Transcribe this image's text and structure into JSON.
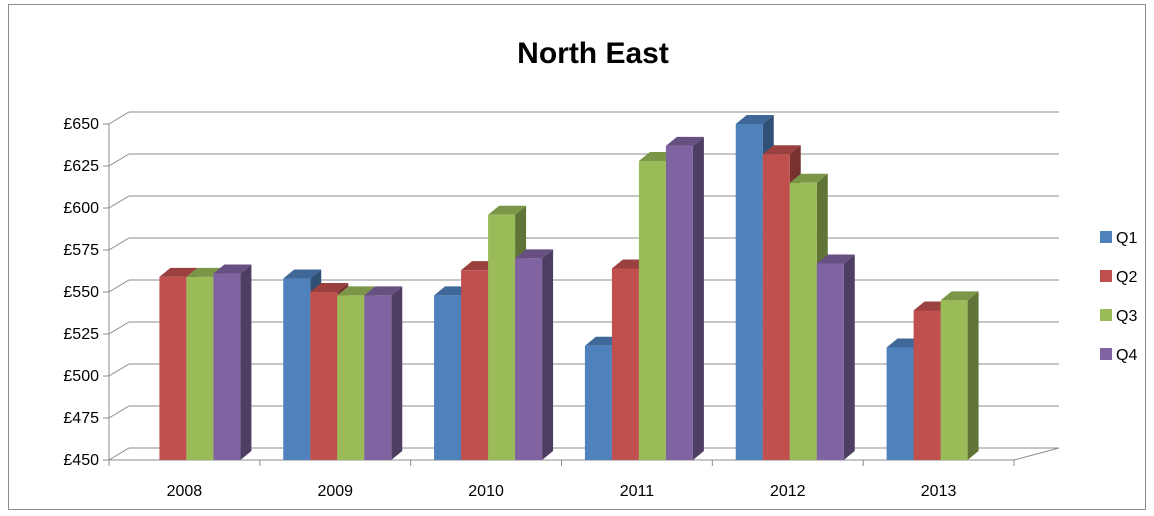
{
  "chart_data": {
    "type": "bar",
    "title": "North East",
    "xlabel": "",
    "ylabel": "",
    "categories": [
      "2008",
      "2009",
      "2010",
      "2011",
      "2012",
      "2013"
    ],
    "y_ticks": [
      "£450",
      "£475",
      "£500",
      "£525",
      "£550",
      "£575",
      "£600",
      "£625",
      "£650"
    ],
    "ylim": [
      450,
      650
    ],
    "grid": true,
    "legend_position": "right",
    "series": [
      {
        "name": "Q1",
        "color": "#4F81BD",
        "values": [
          null,
          558,
          548,
          518,
          650,
          517
        ]
      },
      {
        "name": "Q2",
        "color": "#C0504D",
        "values": [
          559,
          550,
          563,
          564,
          632,
          539
        ]
      },
      {
        "name": "Q3",
        "color": "#9BBB59",
        "values": [
          559,
          548,
          596,
          628,
          615,
          545
        ]
      },
      {
        "name": "Q4",
        "color": "#8064A2",
        "values": [
          561,
          548,
          570,
          637,
          567,
          null
        ]
      }
    ]
  }
}
